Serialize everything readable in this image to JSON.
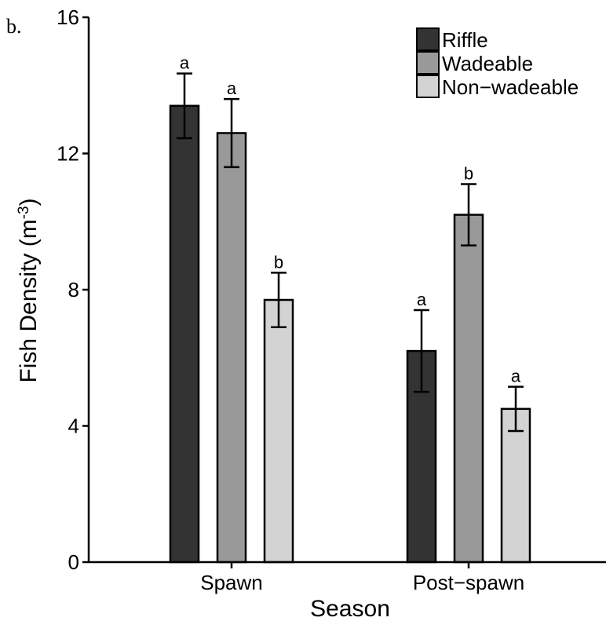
{
  "panel_label": "b.",
  "chart_data": {
    "type": "bar",
    "categories": [
      "Spawn",
      "Post−spawn"
    ],
    "xlabel": "Season",
    "ylabel": "Fish Density (m",
    "ylabel_sup": "-3",
    "ylabel_close": ")",
    "ylim": [
      0,
      16
    ],
    "yticks": [
      0,
      4,
      8,
      12,
      16
    ],
    "grid": false,
    "legend_position": "top-right",
    "series": [
      {
        "name": "Riffle",
        "color": "#333333",
        "values": [
          13.4,
          6.2
        ],
        "error": [
          0.95,
          1.2
        ],
        "letters": [
          "a",
          "a"
        ]
      },
      {
        "name": "Wadeable",
        "color": "#999999",
        "values": [
          12.6,
          10.2
        ],
        "error": [
          1.0,
          0.9
        ],
        "letters": [
          "a",
          "b"
        ]
      },
      {
        "name": "Non−wadeable",
        "color": "#d3d3d3",
        "values": [
          7.7,
          4.5
        ],
        "error": [
          0.8,
          0.65
        ],
        "letters": [
          "b",
          "a"
        ]
      }
    ]
  }
}
